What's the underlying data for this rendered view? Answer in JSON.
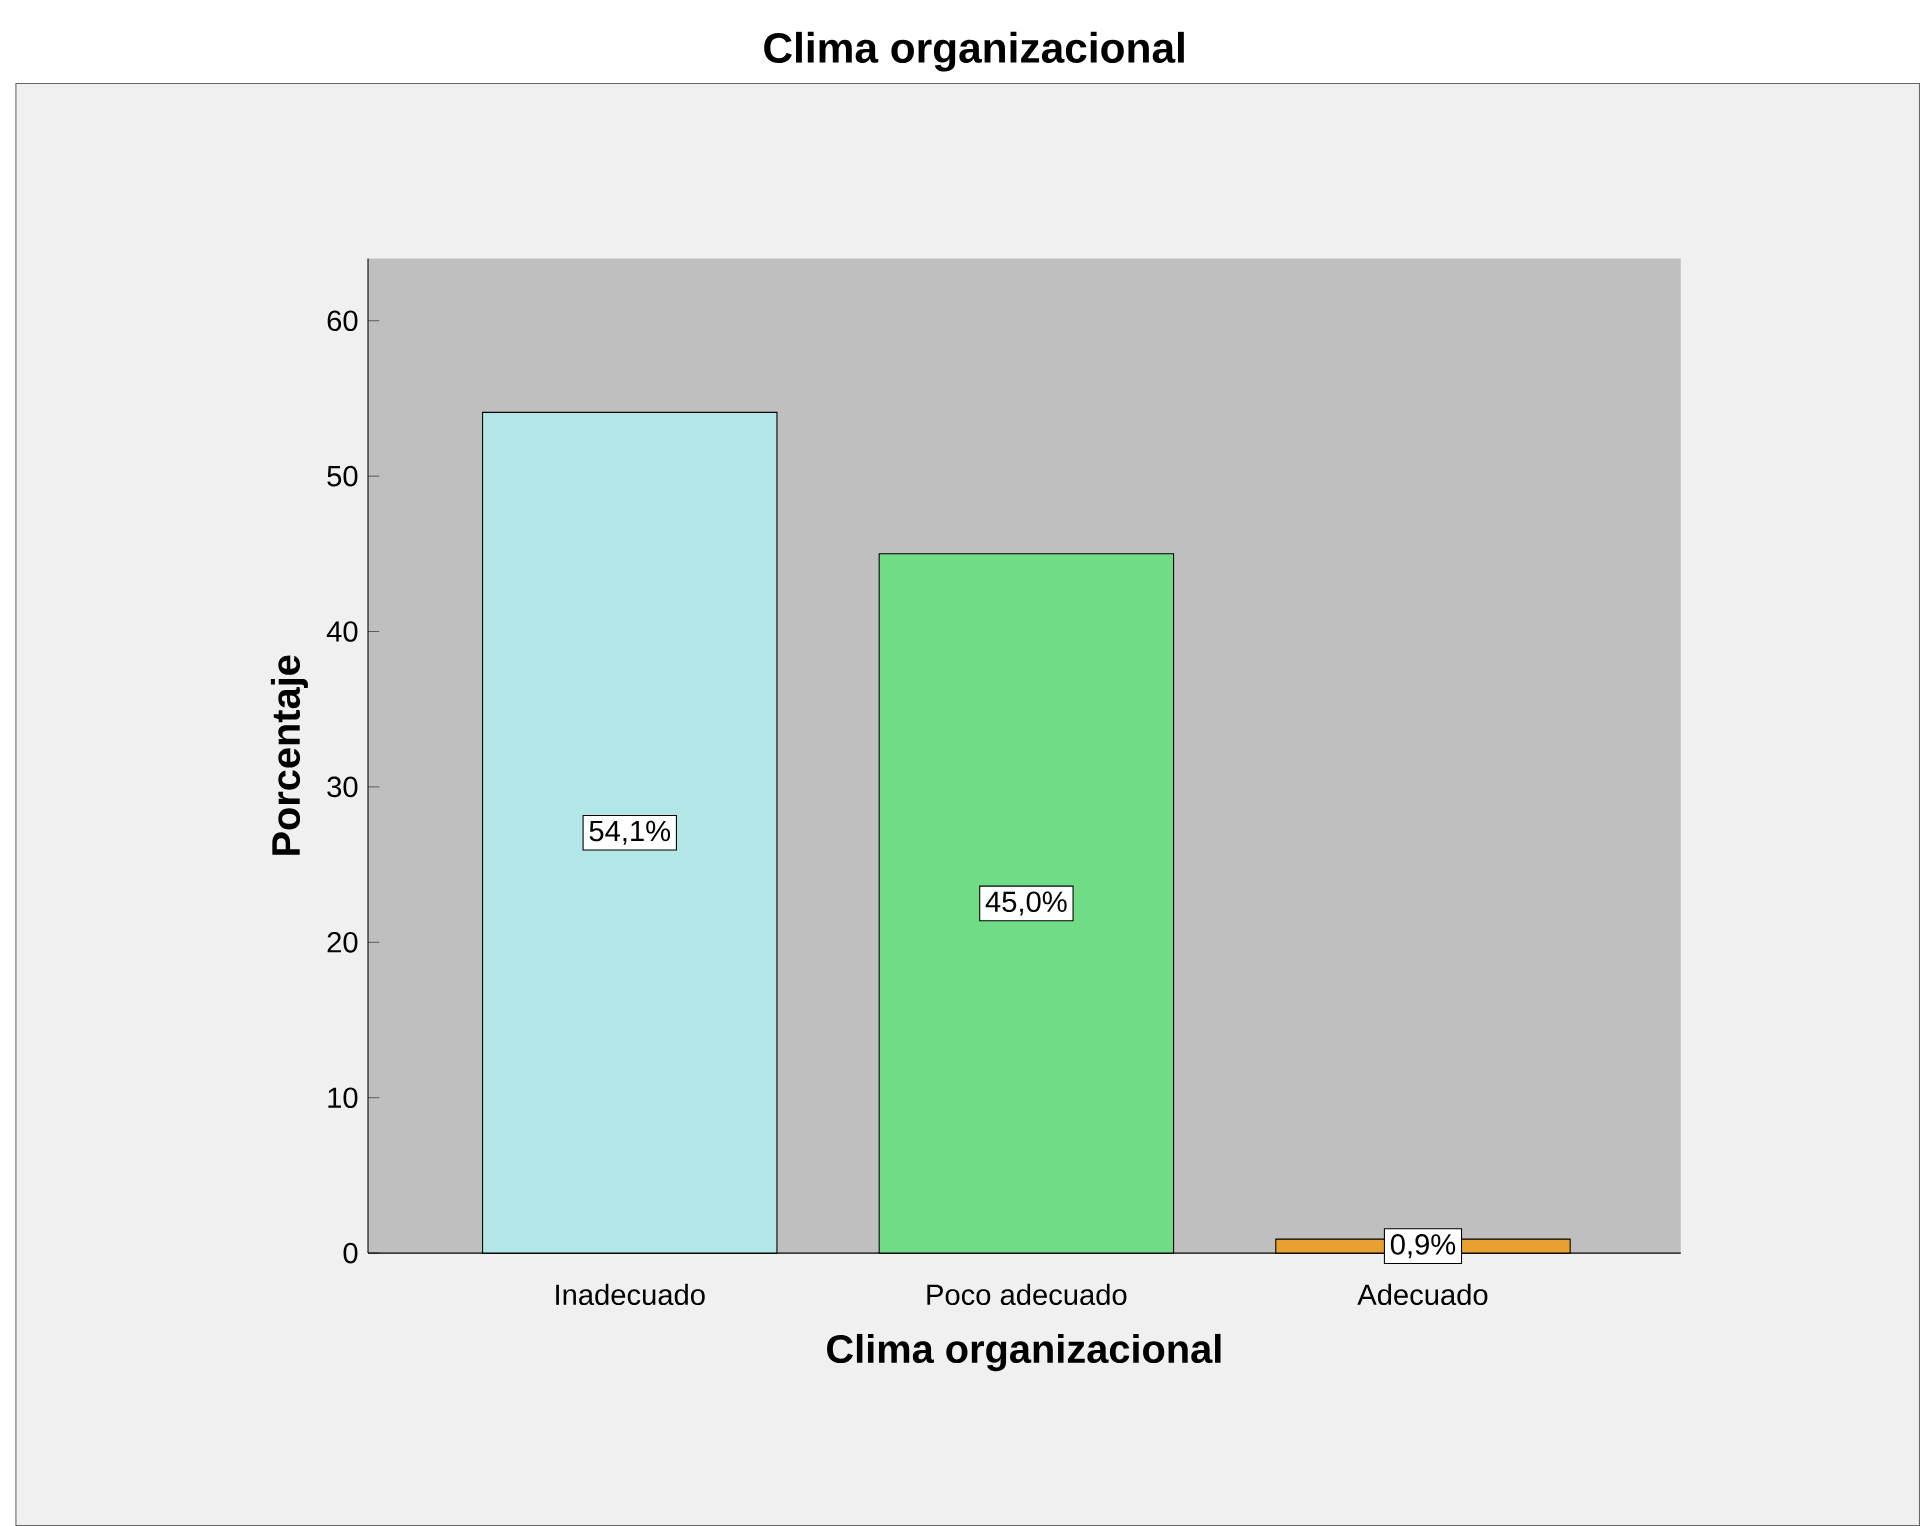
{
  "chart_data": {
    "type": "bar",
    "title": "Clima organizacional",
    "xlabel": "Clima organizacional",
    "ylabel": "Porcentaje",
    "categories": [
      "Inadecuado",
      "Poco adecuado",
      "Adecuado"
    ],
    "values": [
      54.1,
      45.0,
      0.9
    ],
    "value_labels": [
      "54,1%",
      "45,0%",
      "0,9%"
    ],
    "colors": [
      "#b3e6e6",
      "#70dc86",
      "#e8a030"
    ],
    "ylim": [
      0,
      64
    ],
    "yticks": [
      0,
      10,
      20,
      30,
      40,
      50,
      60
    ],
    "grid": false
  }
}
